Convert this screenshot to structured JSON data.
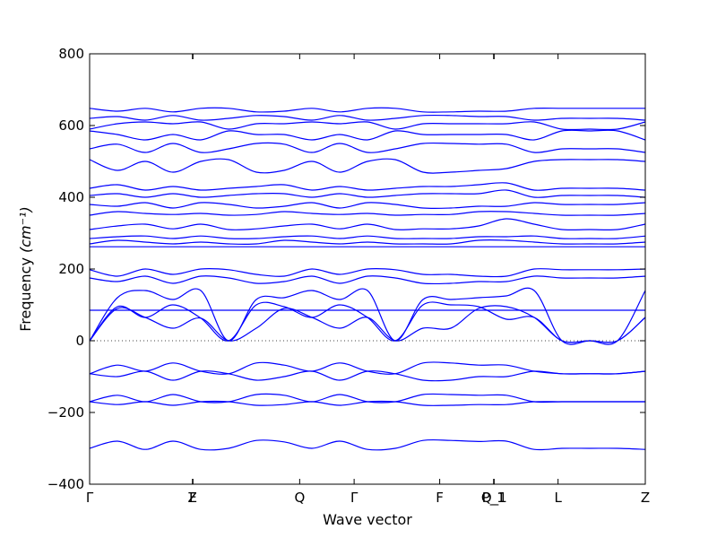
{
  "chart_data": {
    "type": "line",
    "title": "",
    "xlabel": "Wave vector",
    "ylabel": "Frequency",
    "ylabel_unit": "(cm⁻¹)",
    "ylim": [
      -400,
      800
    ],
    "yticks": [
      -400,
      -200,
      0,
      200,
      400,
      600,
      800
    ],
    "xticks": [
      {
        "label": "Γ",
        "pos": 0.0
      },
      {
        "label": "Z",
        "pos": 0.185
      },
      {
        "label": "F",
        "pos": 0.186
      },
      {
        "label": "Q",
        "pos": 0.378
      },
      {
        "label": "Γ",
        "pos": 0.476
      },
      {
        "label": "F",
        "pos": 0.63
      },
      {
        "label": "P_1",
        "pos": 0.727
      },
      {
        "label": "Q_1",
        "pos": 0.728
      },
      {
        "label": "L",
        "pos": 0.843
      },
      {
        "label": "Z",
        "pos": 1.0
      }
    ],
    "grid": false,
    "zero_line": "dotted",
    "line_color": "#0000ff",
    "bands": [
      {
        "name": "b1",
        "values": [
          -300,
          -280,
          -303,
          -280,
          -303,
          -300,
          -278,
          -282,
          -300,
          -280,
          -303,
          -300,
          -278,
          -278,
          -281,
          -280,
          -303,
          -300,
          -300,
          -300,
          -303
        ]
      },
      {
        "name": "b2",
        "values": [
          -170,
          -152,
          -170,
          -150,
          -170,
          -170,
          -150,
          -152,
          -170,
          -150,
          -170,
          -170,
          -150,
          -150,
          -152,
          -152,
          -170,
          -170,
          -170,
          -170,
          -170
        ]
      },
      {
        "name": "b3",
        "values": [
          -170,
          -178,
          -170,
          -180,
          -170,
          -170,
          -180,
          -178,
          -170,
          -180,
          -170,
          -170,
          -180,
          -180,
          -178,
          -178,
          -170,
          -170,
          -170,
          -170,
          -170
        ]
      },
      {
        "name": "b4",
        "values": [
          -92,
          -68,
          -85,
          -62,
          -85,
          -92,
          -62,
          -68,
          -85,
          -62,
          -85,
          -92,
          -62,
          -62,
          -68,
          -68,
          -85,
          -92,
          -92,
          -92,
          -85
        ]
      },
      {
        "name": "b5",
        "values": [
          -92,
          -100,
          -85,
          -110,
          -85,
          -92,
          -110,
          -100,
          -85,
          -110,
          -85,
          -92,
          -110,
          -110,
          -100,
          -100,
          -85,
          -92,
          -92,
          -92,
          -85
        ]
      },
      {
        "name": "b6",
        "values": [
          0,
          90,
          65,
          35,
          63,
          0,
          35,
          90,
          65,
          35,
          65,
          0,
          35,
          35,
          90,
          95,
          65,
          0,
          0,
          0,
          65
        ]
      },
      {
        "name": "b7",
        "values": [
          0,
          95,
          65,
          100,
          63,
          0,
          100,
          95,
          65,
          100,
          65,
          0,
          100,
          100,
          95,
          60,
          65,
          0,
          0,
          0,
          65
        ]
      },
      {
        "name": "b8",
        "values": [
          0,
          120,
          140,
          115,
          140,
          0,
          115,
          120,
          140,
          115,
          140,
          0,
          115,
          115,
          120,
          125,
          140,
          0,
          0,
          0,
          140
        ]
      },
      {
        "name": "b9",
        "values": [
          85,
          85,
          85,
          85,
          85,
          85,
          85,
          85,
          85,
          85,
          85,
          85,
          85,
          85,
          85,
          85,
          85,
          85,
          85,
          85,
          85
        ]
      },
      {
        "name": "b10",
        "values": [
          175,
          165,
          180,
          160,
          180,
          175,
          160,
          165,
          180,
          160,
          180,
          175,
          160,
          160,
          165,
          165,
          180,
          175,
          175,
          175,
          180
        ]
      },
      {
        "name": "b11",
        "values": [
          198,
          180,
          200,
          185,
          200,
          198,
          185,
          180,
          200,
          185,
          200,
          198,
          185,
          185,
          180,
          180,
          200,
          198,
          198,
          198,
          200
        ]
      },
      {
        "name": "b12",
        "values": [
          262,
          262,
          262,
          262,
          262,
          262,
          262,
          262,
          262,
          262,
          262,
          262,
          262,
          262,
          262,
          262,
          262,
          262,
          262,
          262,
          262
        ]
      },
      {
        "name": "b13",
        "values": [
          270,
          280,
          275,
          270,
          275,
          270,
          270,
          280,
          275,
          270,
          275,
          270,
          270,
          270,
          280,
          280,
          275,
          270,
          270,
          270,
          275
        ]
      },
      {
        "name": "b14",
        "values": [
          285,
          290,
          292,
          285,
          292,
          285,
          285,
          290,
          292,
          285,
          292,
          285,
          285,
          285,
          290,
          290,
          292,
          285,
          285,
          285,
          292
        ]
      },
      {
        "name": "b15",
        "values": [
          310,
          320,
          325,
          312,
          325,
          310,
          312,
          320,
          325,
          312,
          325,
          310,
          312,
          312,
          320,
          340,
          325,
          310,
          310,
          310,
          325
        ]
      },
      {
        "name": "b16",
        "values": [
          350,
          360,
          355,
          352,
          355,
          350,
          352,
          360,
          355,
          352,
          355,
          350,
          352,
          352,
          360,
          360,
          355,
          350,
          350,
          350,
          355
        ]
      },
      {
        "name": "b17",
        "values": [
          380,
          375,
          385,
          370,
          385,
          380,
          370,
          375,
          385,
          370,
          385,
          380,
          370,
          370,
          375,
          375,
          385,
          380,
          380,
          380,
          385
        ]
      },
      {
        "name": "b18",
        "values": [
          405,
          410,
          400,
          410,
          400,
          405,
          410,
          410,
          400,
          410,
          400,
          405,
          410,
          410,
          410,
          420,
          400,
          405,
          405,
          405,
          400
        ]
      },
      {
        "name": "b19",
        "values": [
          425,
          435,
          420,
          430,
          420,
          425,
          430,
          435,
          420,
          430,
          420,
          425,
          430,
          430,
          435,
          440,
          420,
          425,
          425,
          425,
          420
        ]
      },
      {
        "name": "b20",
        "values": [
          505,
          475,
          500,
          470,
          500,
          505,
          470,
          475,
          500,
          470,
          500,
          505,
          470,
          470,
          475,
          480,
          500,
          505,
          505,
          505,
          500
        ]
      },
      {
        "name": "b21",
        "values": [
          535,
          548,
          525,
          550,
          525,
          535,
          550,
          548,
          525,
          550,
          525,
          535,
          550,
          550,
          548,
          548,
          525,
          535,
          535,
          535,
          525
        ]
      },
      {
        "name": "b22",
        "values": [
          585,
          575,
          560,
          575,
          560,
          585,
          575,
          575,
          560,
          575,
          560,
          585,
          575,
          575,
          575,
          575,
          560,
          585,
          585,
          585,
          560
        ]
      },
      {
        "name": "b23",
        "values": [
          590,
          605,
          610,
          605,
          610,
          590,
          605,
          605,
          610,
          605,
          610,
          590,
          605,
          605,
          605,
          605,
          610,
          590,
          590,
          590,
          610
        ]
      },
      {
        "name": "b24",
        "values": [
          620,
          625,
          615,
          628,
          615,
          620,
          628,
          625,
          615,
          628,
          615,
          620,
          628,
          628,
          625,
          625,
          615,
          620,
          620,
          620,
          615
        ]
      },
      {
        "name": "b25",
        "values": [
          648,
          640,
          648,
          638,
          648,
          648,
          638,
          640,
          648,
          638,
          648,
          648,
          638,
          638,
          640,
          640,
          648,
          648,
          648,
          648,
          648
        ]
      }
    ]
  }
}
